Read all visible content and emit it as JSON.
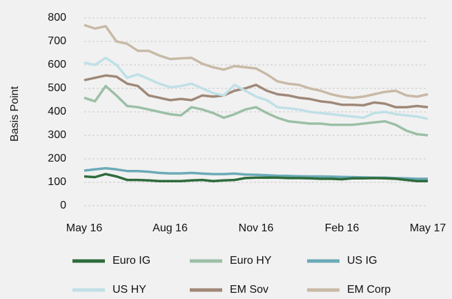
{
  "chart_data": {
    "type": "line",
    "y_label": "Basis Point",
    "categories": [
      "May 16",
      null,
      null,
      null,
      null,
      null,
      null,
      null,
      "Aug 16",
      null,
      null,
      null,
      null,
      null,
      null,
      null,
      "Nov 16",
      null,
      null,
      null,
      null,
      null,
      null,
      null,
      "Feb 16",
      null,
      null,
      null,
      null,
      null,
      null,
      null,
      "May 17"
    ],
    "ylim": [
      0,
      800
    ],
    "yticks": [
      0,
      100,
      200,
      300,
      400,
      500,
      600,
      700,
      800
    ],
    "grid": true,
    "series": [
      {
        "name": "Euro IG",
        "color": "#2e6b3b",
        "values": [
          125,
          122,
          135,
          125,
          110,
          110,
          108,
          105,
          105,
          105,
          108,
          110,
          105,
          108,
          110,
          118,
          120,
          120,
          120,
          118,
          118,
          117,
          115,
          115,
          113,
          117,
          117,
          118,
          117,
          115,
          110,
          105,
          105
        ]
      },
      {
        "name": "Euro HY",
        "color": "#9bbfa6",
        "values": [
          460,
          445,
          510,
          470,
          425,
          420,
          410,
          400,
          390,
          385,
          420,
          410,
          395,
          375,
          390,
          410,
          420,
          395,
          375,
          360,
          355,
          350,
          350,
          345,
          345,
          345,
          350,
          355,
          360,
          345,
          320,
          305,
          300
        ]
      },
      {
        "name": "US IG",
        "color": "#6aaab8",
        "values": [
          150,
          155,
          160,
          155,
          148,
          148,
          145,
          140,
          138,
          138,
          140,
          137,
          135,
          135,
          137,
          133,
          132,
          130,
          128,
          127,
          126,
          125,
          125,
          124,
          123,
          122,
          121,
          120,
          120,
          118,
          117,
          115,
          115
        ]
      },
      {
        "name": "US HY",
        "color": "#bfe0e6",
        "values": [
          610,
          600,
          630,
          600,
          545,
          560,
          540,
          520,
          505,
          510,
          520,
          500,
          480,
          470,
          515,
          490,
          465,
          450,
          420,
          415,
          410,
          400,
          395,
          390,
          385,
          380,
          375,
          395,
          400,
          390,
          385,
          380,
          370
        ]
      },
      {
        "name": "EM Sov",
        "color": "#9e8878",
        "values": [
          535,
          545,
          555,
          550,
          520,
          510,
          470,
          460,
          450,
          455,
          450,
          470,
          465,
          470,
          490,
          500,
          515,
          490,
          475,
          470,
          460,
          455,
          445,
          440,
          430,
          430,
          428,
          440,
          435,
          420,
          420,
          425,
          420
        ]
      },
      {
        "name": "EM Corp",
        "color": "#c8b9a6",
        "values": [
          770,
          755,
          765,
          700,
          690,
          660,
          660,
          640,
          625,
          628,
          630,
          605,
          590,
          580,
          595,
          590,
          585,
          560,
          530,
          520,
          515,
          500,
          490,
          475,
          465,
          460,
          465,
          475,
          485,
          490,
          470,
          465,
          475
        ]
      }
    ]
  }
}
